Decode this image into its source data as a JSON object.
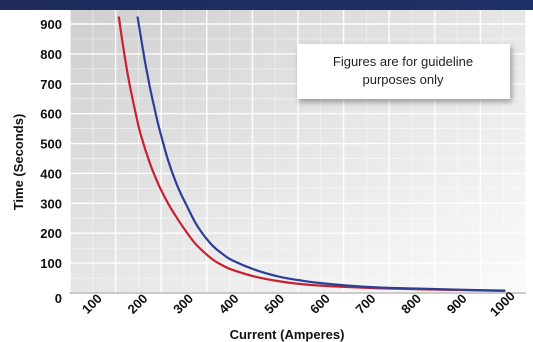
{
  "chart_data": {
    "type": "line",
    "title": "",
    "xlabel": "Current (Amperes)",
    "ylabel": "Time (Seconds)",
    "xlim": [
      100,
      1000
    ],
    "ylim": [
      0,
      900
    ],
    "x_ticks": [
      100,
      200,
      300,
      400,
      500,
      600,
      700,
      800,
      900,
      1000
    ],
    "y_ticks": [
      0,
      100,
      200,
      300,
      400,
      500,
      600,
      700,
      800,
      900
    ],
    "grid": true,
    "legend": "none",
    "annotation": {
      "lines": [
        "Figures are for guideline",
        "purposes only"
      ],
      "placement": "top-right"
    },
    "series": [
      {
        "color": "#c8202f",
        "x": [
          152,
          160,
          170,
          180,
          190,
          200,
          220,
          240,
          260,
          280,
          300,
          320,
          340,
          360,
          380,
          400,
          450,
          500,
          550,
          600,
          700,
          800,
          900,
          1000
        ],
        "y": [
          925,
          840,
          745,
          665,
          595,
          530,
          435,
          360,
          300,
          250,
          205,
          165,
          135,
          110,
          92,
          78,
          55,
          40,
          30,
          24,
          17,
          13,
          10,
          7
        ]
      },
      {
        "color": "#2b3f98",
        "x": [
          193,
          200,
          210,
          220,
          230,
          240,
          260,
          280,
          300,
          320,
          340,
          360,
          380,
          400,
          450,
          500,
          550,
          600,
          700,
          800,
          900,
          1000
        ],
        "y": [
          925,
          860,
          770,
          690,
          620,
          555,
          445,
          360,
          295,
          235,
          190,
          155,
          130,
          110,
          78,
          56,
          42,
          32,
          20,
          15,
          11,
          8
        ]
      }
    ],
    "header_color": "#1c2b5a"
  }
}
